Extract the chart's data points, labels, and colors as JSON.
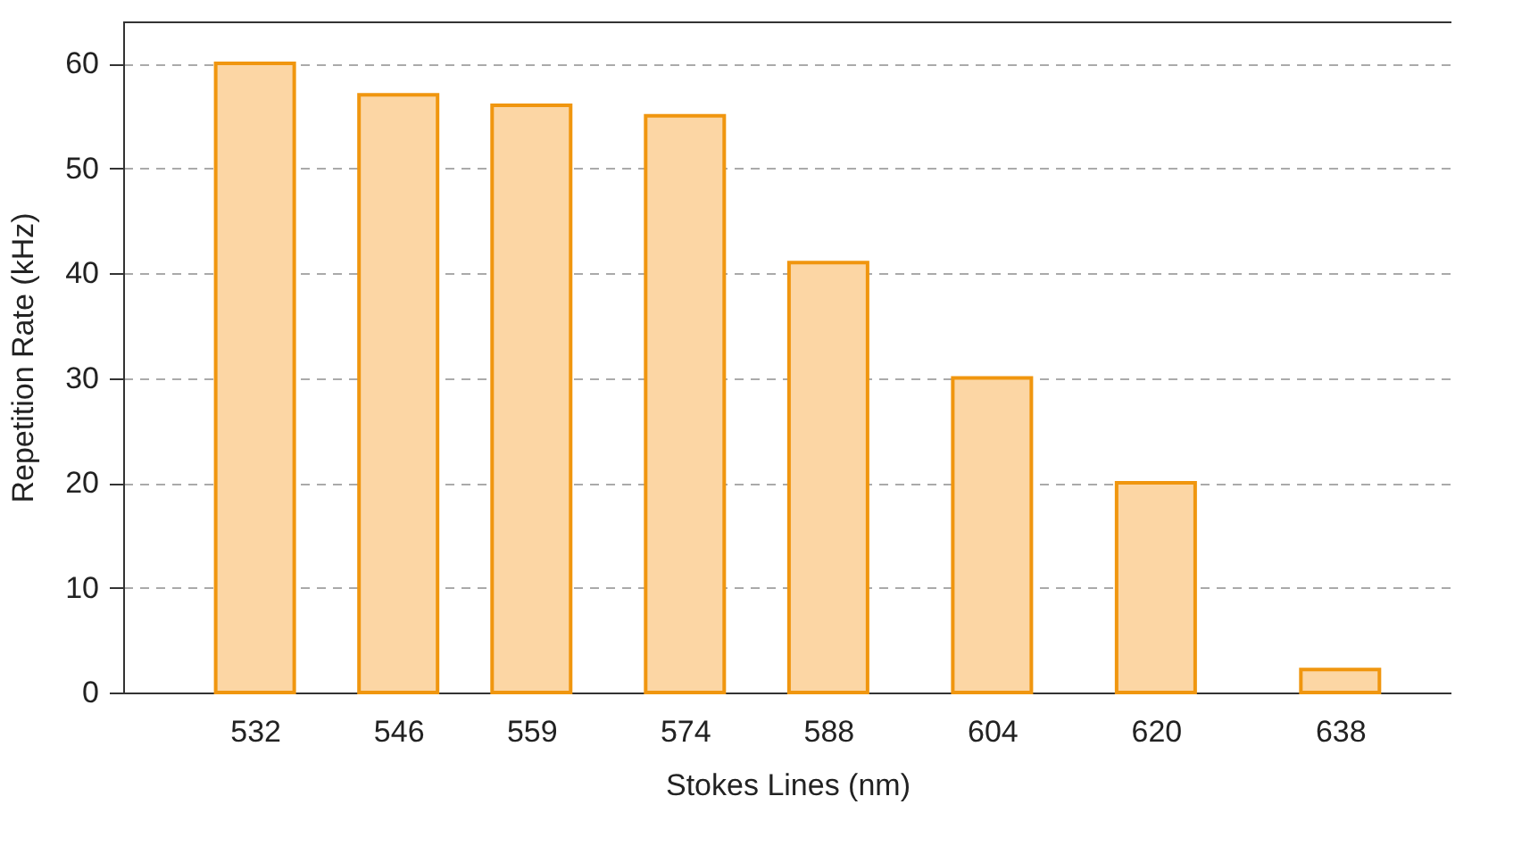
{
  "chart_data": {
    "type": "bar",
    "xlabel": "Stokes Lines (nm)",
    "ylabel": "Repetition Rate (kHz)",
    "x": [
      532,
      546,
      559,
      574,
      588,
      604,
      620,
      638
    ],
    "values": [
      60,
      57,
      56,
      55,
      41,
      30,
      20,
      2.2
    ],
    "color": "#fcd6a4",
    "xlim": [
      520,
      648
    ],
    "xticks": [
      532,
      546,
      559,
      574,
      588,
      604,
      620,
      638
    ],
    "ylim": [
      0,
      64
    ],
    "yticks": [
      0,
      10,
      20,
      30,
      40,
      50,
      60
    ],
    "grid": "y"
  }
}
